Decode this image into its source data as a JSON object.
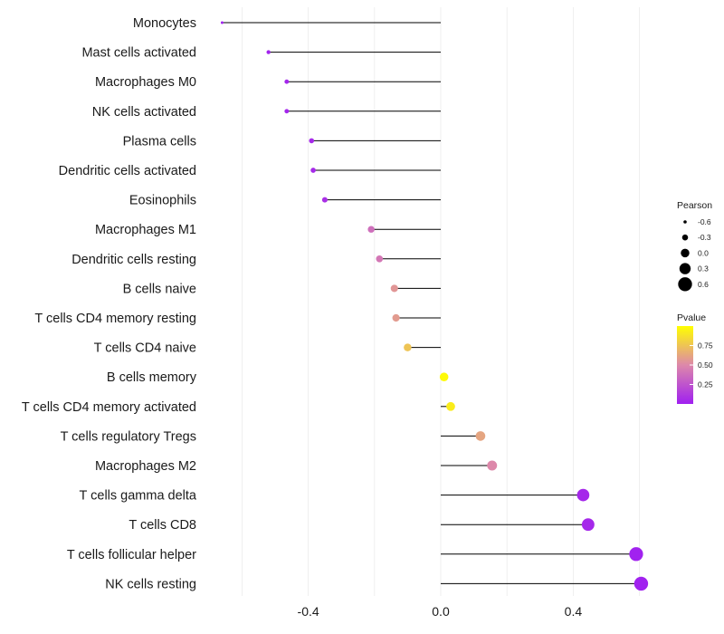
{
  "chart_data": {
    "type": "lollipop",
    "title": "",
    "xlabel": "",
    "ylabel": "",
    "xlim": [
      -0.66,
      0.66
    ],
    "xticks": [
      -0.4,
      0.0,
      0.4
    ],
    "xtick_labels": [
      "-0.4",
      "0.0",
      "0.4"
    ],
    "grid": true,
    "categories": [
      "Monocytes",
      "Mast cells activated",
      "Macrophages M0",
      "NK cells activated",
      "Plasma cells",
      "Dendritic cells activated",
      "Eosinophils",
      "Macrophages M1",
      "Dendritic cells resting",
      "B cells naive",
      "T cells CD4 memory resting",
      "T cells CD4 naive",
      "B cells memory",
      "T cells CD4 memory activated",
      "T cells regulatory  Tregs ",
      "Macrophages M2",
      "T cells gamma delta",
      "T cells CD8",
      "T cells follicular helper",
      "NK cells resting"
    ],
    "values": [
      -0.66,
      -0.52,
      -0.465,
      -0.465,
      -0.39,
      -0.385,
      -0.35,
      -0.21,
      -0.185,
      -0.14,
      -0.135,
      -0.1,
      0.01,
      0.03,
      0.12,
      0.155,
      0.43,
      0.445,
      0.59,
      0.605
    ],
    "pvalues": [
      0.01,
      0.02,
      0.03,
      0.03,
      0.05,
      0.05,
      0.07,
      0.38,
      0.42,
      0.56,
      0.58,
      0.75,
      0.98,
      0.92,
      0.62,
      0.5,
      0.04,
      0.04,
      0.01,
      0.01
    ],
    "size_legend": {
      "title": "Pearson",
      "values": [
        -0.6,
        -0.3,
        0.0,
        0.3,
        0.6
      ],
      "labels": [
        "-0.6",
        "-0.3",
        "0.0",
        "0.3",
        "0.6"
      ]
    },
    "color_legend": {
      "title": "Pvalue",
      "ticks": [
        0.75,
        0.5,
        0.25
      ],
      "tick_labels": [
        "0.75",
        "0.50",
        "0.25"
      ],
      "range": [
        0.0,
        1.0
      ],
      "low_color": "#a020f0",
      "mid_color": "#dd88aa",
      "high_color": "#ffff00"
    },
    "legend_position": "right"
  }
}
